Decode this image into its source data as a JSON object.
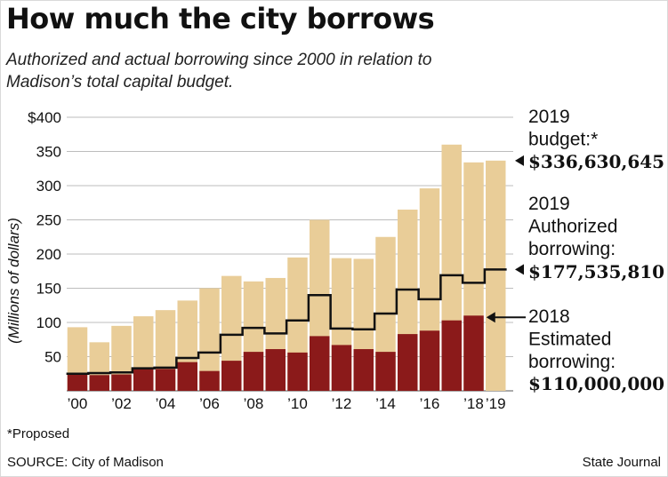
{
  "title": "How much the city borrows",
  "subtitle": "Authorized and actual borrowing since 2000 in relation to Madison’s total capital budget.",
  "footnote": "*Proposed",
  "source": "SOURCE: City of Madison",
  "credit": "State Journal",
  "colors": {
    "budget": "#e9cd98",
    "borrowing": "#8b1a1a",
    "authorized_line": "#111111",
    "grid": "#bdbdbd"
  },
  "chart_data": {
    "type": "bar",
    "categories": [
      "2000",
      "2001",
      "2002",
      "2003",
      "2004",
      "2005",
      "2006",
      "2007",
      "2008",
      "2009",
      "2010",
      "2011",
      "2012",
      "2013",
      "2014",
      "2015",
      "2016",
      "2017",
      "2018",
      "2019"
    ],
    "x_tick_labels": [
      "’00",
      "",
      "’02",
      "",
      "’04",
      "",
      "’06",
      "",
      "’08",
      "",
      "’10",
      "",
      "’12",
      "",
      "’14",
      "",
      "’16",
      "",
      "’18",
      "’19"
    ],
    "series": [
      {
        "name": "Total capital budget",
        "values": [
          93,
          71,
          95,
          109,
          118,
          132,
          150,
          168,
          160,
          165,
          195,
          250,
          194,
          193,
          225,
          265,
          296,
          360,
          334,
          336.6
        ]
      },
      {
        "name": "Actual borrowing",
        "values": [
          24,
          23,
          24,
          32,
          32,
          42,
          29,
          44,
          57,
          61,
          56,
          80,
          67,
          61,
          57,
          83,
          88,
          103,
          110,
          null
        ]
      },
      {
        "name": "Authorized borrowing",
        "type": "step-line",
        "values": [
          25,
          26,
          27,
          33,
          34,
          48,
          56,
          82,
          92,
          84,
          103,
          140,
          91,
          90,
          113,
          148,
          134,
          169,
          158,
          177.5
        ]
      }
    ],
    "ylabel": "(Millions of dollars)",
    "ylim": [
      0,
      400
    ],
    "y_ticks": [
      50,
      100,
      150,
      200,
      250,
      300,
      350,
      400
    ],
    "y_tick_labels": [
      "50",
      "100",
      "150",
      "200",
      "250",
      "300",
      "350",
      "$400"
    ],
    "grid": true,
    "annotations": [
      {
        "label": "2019\nbudget:*",
        "value_label": "$336,630,645",
        "points_to": {
          "category": "2019",
          "value": 336.6
        },
        "marker": "arrowhead"
      },
      {
        "label": "2019\nAuthorized\nborrowing:",
        "value_label": "$177,535,810",
        "points_to": {
          "category": "2019",
          "value": 177.5
        },
        "marker": "arrowhead"
      },
      {
        "label": "2018\nEstimated\nborrowing:",
        "value_label": "$110,000,000",
        "points_to": {
          "category": "2018",
          "value": 110
        },
        "marker": "arrow"
      }
    ]
  }
}
